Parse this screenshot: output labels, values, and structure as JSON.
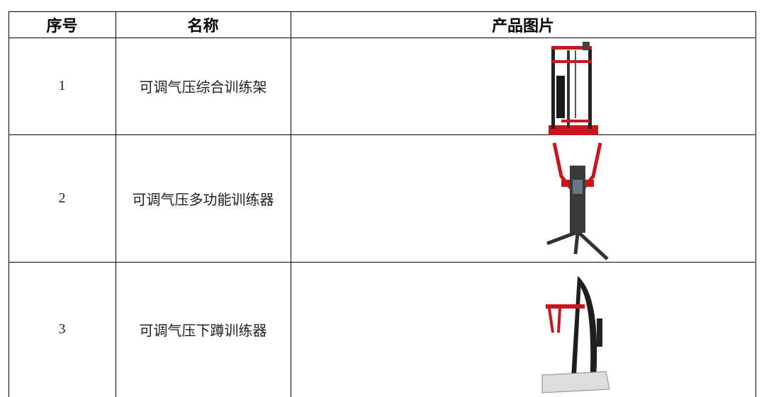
{
  "table": {
    "header": [
      "序号",
      "名称",
      "产品图片"
    ],
    "rows": [
      [
        "1",
        "可调气压综合训练架"
      ],
      [
        "2",
        "可调气压多功能训练器"
      ],
      [
        "3",
        "可调气压下蹲训练器"
      ]
    ]
  }
}
